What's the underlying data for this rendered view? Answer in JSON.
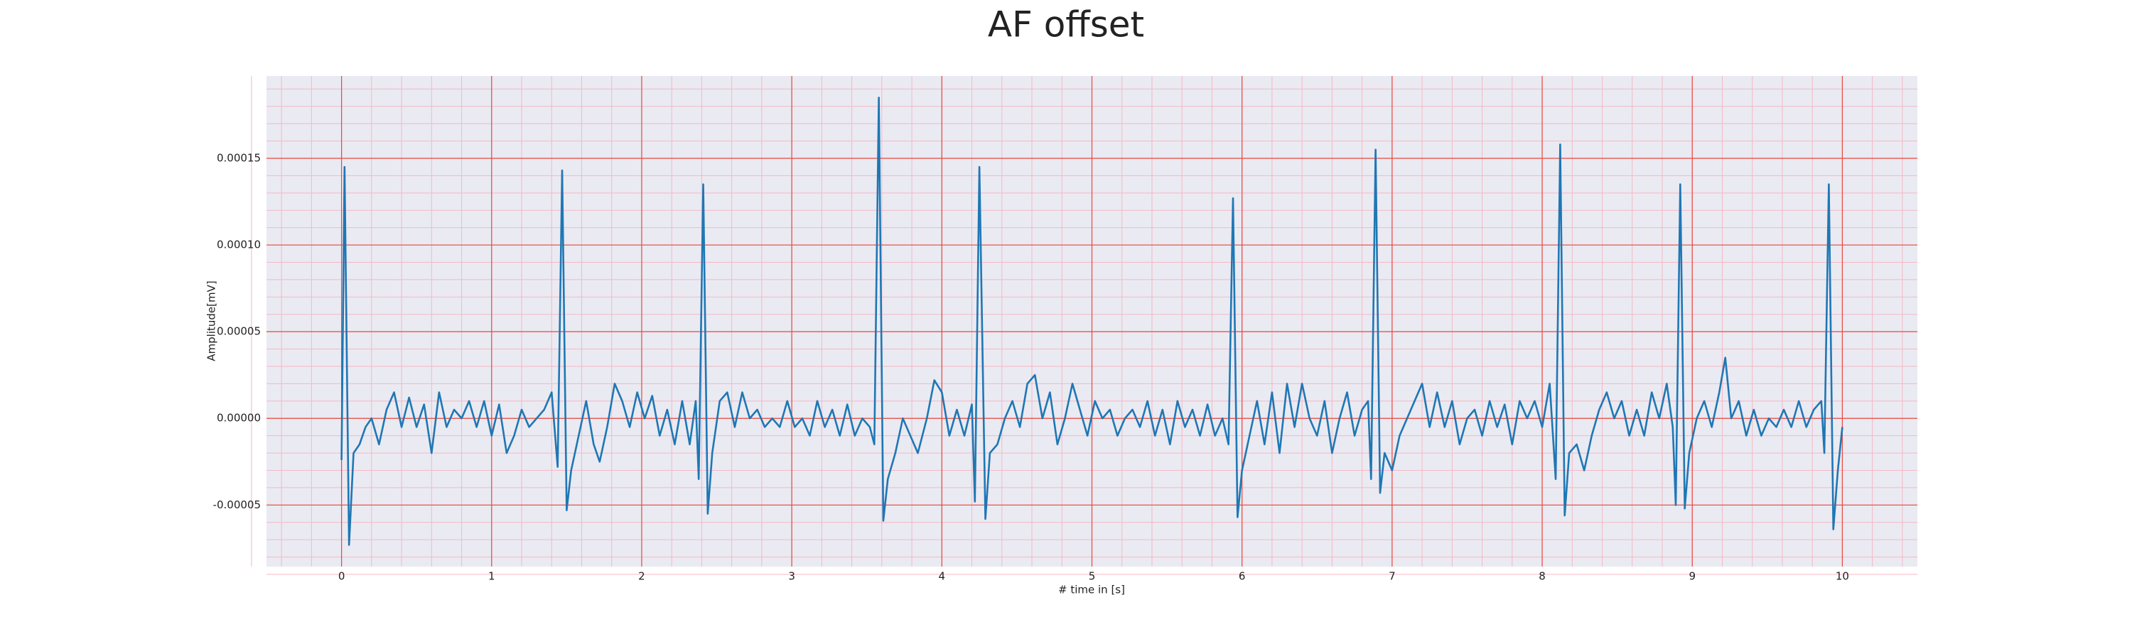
{
  "chart_data": {
    "type": "line",
    "title": "AF offset",
    "xlabel": "# time in [s]",
    "ylabel": "Amplitude[mV]",
    "color": "#1f77b4",
    "grid": true,
    "minor_grid": true,
    "xlim": [
      -0.5,
      10.5
    ],
    "ylim": [
      -8.55e-05,
      0.0001975
    ],
    "xticks": [
      0,
      1,
      2,
      3,
      4,
      5,
      6,
      7,
      8,
      9,
      10
    ],
    "yticks": [
      {
        "value": -5e-05,
        "label": "-0.00005"
      },
      {
        "value": 0,
        "label": "0.00000"
      },
      {
        "value": 5e-05,
        "label": "0.00005"
      },
      {
        "value": 0.0001,
        "label": "0.00010"
      },
      {
        "value": 0.00015,
        "label": "0.00015"
      }
    ],
    "x": [
      0,
      0.02,
      0.05,
      0.08,
      0.12,
      0.16,
      0.2,
      0.25,
      0.3,
      0.35,
      0.4,
      0.45,
      0.5,
      0.55,
      0.6,
      0.65,
      0.7,
      0.75,
      0.8,
      0.85,
      0.9,
      0.95,
      1.0,
      1.05,
      1.1,
      1.15,
      1.2,
      1.25,
      1.3,
      1.35,
      1.4,
      1.44,
      1.47,
      1.5,
      1.53,
      1.58,
      1.63,
      1.68,
      1.72,
      1.77,
      1.82,
      1.87,
      1.92,
      1.97,
      2.02,
      2.07,
      2.12,
      2.17,
      2.22,
      2.27,
      2.32,
      2.36,
      2.38,
      2.41,
      2.44,
      2.47,
      2.52,
      2.57,
      2.62,
      2.67,
      2.72,
      2.77,
      2.82,
      2.87,
      2.92,
      2.97,
      3.02,
      3.07,
      3.12,
      3.17,
      3.22,
      3.27,
      3.32,
      3.37,
      3.42,
      3.47,
      3.52,
      3.55,
      3.58,
      3.61,
      3.64,
      3.69,
      3.74,
      3.79,
      3.84,
      3.9,
      3.95,
      4.0,
      4.05,
      4.1,
      4.15,
      4.2,
      4.22,
      4.25,
      4.29,
      4.32,
      4.37,
      4.42,
      4.47,
      4.52,
      4.57,
      4.62,
      4.67,
      4.72,
      4.77,
      4.82,
      4.87,
      4.92,
      4.97,
      5.02,
      5.07,
      5.12,
      5.17,
      5.22,
      5.27,
      5.32,
      5.37,
      5.42,
      5.47,
      5.52,
      5.57,
      5.62,
      5.67,
      5.72,
      5.77,
      5.82,
      5.87,
      5.91,
      5.94,
      5.97,
      6.0,
      6.05,
      6.1,
      6.15,
      6.2,
      6.25,
      6.3,
      6.35,
      6.4,
      6.45,
      6.5,
      6.55,
      6.6,
      6.65,
      6.7,
      6.75,
      6.8,
      6.84,
      6.86,
      6.89,
      6.92,
      6.95,
      7.0,
      7.05,
      7.1,
      7.15,
      7.2,
      7.25,
      7.3,
      7.35,
      7.4,
      7.45,
      7.5,
      7.55,
      7.6,
      7.65,
      7.7,
      7.75,
      7.8,
      7.85,
      7.9,
      7.95,
      8.0,
      8.05,
      8.09,
      8.12,
      8.15,
      8.18,
      8.23,
      8.28,
      8.33,
      8.38,
      8.43,
      8.48,
      8.53,
      8.58,
      8.63,
      8.68,
      8.73,
      8.78,
      8.83,
      8.87,
      8.89,
      8.92,
      8.95,
      8.98,
      9.03,
      9.08,
      9.13,
      9.18,
      9.22,
      9.26,
      9.31,
      9.36,
      9.41,
      9.46,
      9.51,
      9.56,
      9.61,
      9.66,
      9.71,
      9.76,
      9.81,
      9.86,
      9.88,
      9.91,
      9.94,
      9.97,
      10.0
    ],
    "values": [
      -2.4e-05,
      0.000145,
      -7.3e-05,
      -2e-05,
      -1.5e-05,
      -5e-06,
      0,
      -1.5e-05,
      5e-06,
      1.5e-05,
      -5e-06,
      1.2e-05,
      -5e-06,
      8e-06,
      -2e-05,
      1.5e-05,
      -5e-06,
      5e-06,
      0,
      1e-05,
      -5e-06,
      1e-05,
      -1e-05,
      8e-06,
      -2e-05,
      -1e-05,
      5e-06,
      -5e-06,
      0,
      5e-06,
      1.5e-05,
      -2.8e-05,
      0.000143,
      -5.3e-05,
      -3e-05,
      -1e-05,
      1e-05,
      -1.5e-05,
      -2.5e-05,
      -5e-06,
      2e-05,
      1e-05,
      -5e-06,
      1.5e-05,
      0,
      1.3e-05,
      -1e-05,
      5e-06,
      -1.5e-05,
      1e-05,
      -1.5e-05,
      1e-05,
      -3.5e-05,
      0.000135,
      -5.5e-05,
      -2e-05,
      1e-05,
      1.5e-05,
      -5e-06,
      1.5e-05,
      0,
      5e-06,
      -5e-06,
      0,
      -5e-06,
      1e-05,
      -5e-06,
      0,
      -1e-05,
      1e-05,
      -5e-06,
      5e-06,
      -1e-05,
      8e-06,
      -1e-05,
      0,
      -5e-06,
      -1.5e-05,
      0.000185,
      -5.9e-05,
      -3.5e-05,
      -2e-05,
      0,
      -1e-05,
      -2e-05,
      0,
      2.2e-05,
      1.5e-05,
      -1e-05,
      5e-06,
      -1e-05,
      8e-06,
      -4.8e-05,
      0.000145,
      -5.8e-05,
      -2e-05,
      -1.5e-05,
      0,
      1e-05,
      -5e-06,
      2e-05,
      2.5e-05,
      0,
      1.5e-05,
      -1.5e-05,
      0,
      2e-05,
      5e-06,
      -1e-05,
      1e-05,
      0,
      5e-06,
      -1e-05,
      0,
      5e-06,
      -5e-06,
      1e-05,
      -1e-05,
      5e-06,
      -1.5e-05,
      1e-05,
      -5e-06,
      5e-06,
      -1e-05,
      8e-06,
      -1e-05,
      0,
      -1.5e-05,
      0.000127,
      -5.7e-05,
      -3e-05,
      -1e-05,
      1e-05,
      -1.5e-05,
      1.5e-05,
      -2e-05,
      2e-05,
      -5e-06,
      2e-05,
      0,
      -1e-05,
      1e-05,
      -2e-05,
      0,
      1.5e-05,
      -1e-05,
      5e-06,
      1e-05,
      -3.5e-05,
      0.000155,
      -4.3e-05,
      -2e-05,
      -3e-05,
      -1e-05,
      0,
      1e-05,
      2e-05,
      -5e-06,
      1.5e-05,
      -5e-06,
      1e-05,
      -1.5e-05,
      0,
      5e-06,
      -1e-05,
      1e-05,
      -5e-06,
      8e-06,
      -1.5e-05,
      1e-05,
      0,
      1e-05,
      -5e-06,
      2e-05,
      -3.5e-05,
      0.000158,
      -5.6e-05,
      -2e-05,
      -1.5e-05,
      -3e-05,
      -1e-05,
      5e-06,
      1.5e-05,
      0,
      1e-05,
      -1e-05,
      5e-06,
      -1e-05,
      1.5e-05,
      0,
      2e-05,
      -5e-06,
      -5e-05,
      0.000135,
      -5.2e-05,
      -2e-05,
      0,
      1e-05,
      -5e-06,
      1.5e-05,
      3.5e-05,
      0,
      1e-05,
      -1e-05,
      5e-06,
      -1e-05,
      0,
      -5e-06,
      5e-06,
      -5e-06,
      1e-05,
      -5e-06,
      5e-06,
      1e-05,
      -2e-05,
      0.000135,
      -6.4e-05,
      -3e-05,
      -5e-06
    ]
  }
}
